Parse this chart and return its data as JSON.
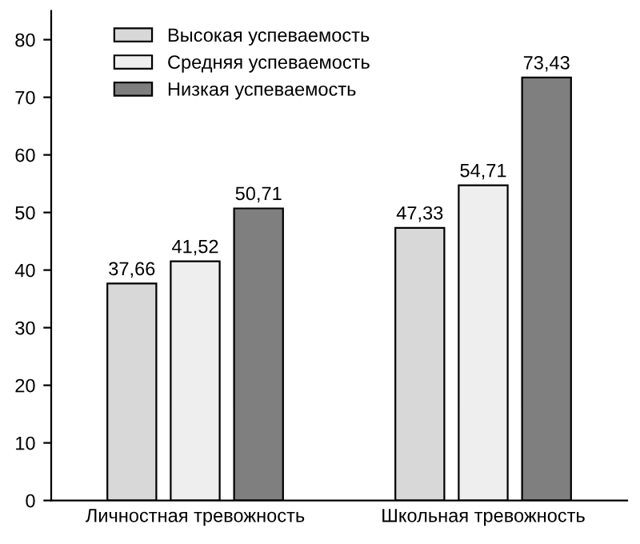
{
  "chart_data": {
    "type": "bar",
    "categories": [
      "Личностная тревожность",
      "Школьная тревожность"
    ],
    "series": [
      {
        "name": "Высокая успеваемость",
        "color": "#d8d8d8",
        "values": [
          37.66,
          47.33
        ],
        "value_labels": [
          "37,66",
          "47,33"
        ]
      },
      {
        "name": "Средняя успеваемость",
        "color": "#eeeeee",
        "values": [
          41.52,
          54.71
        ],
        "value_labels": [
          "41,52",
          "54,71"
        ]
      },
      {
        "name": "Низкая успеваемость",
        "color": "#7f7f7f",
        "values": [
          50.71,
          73.43
        ],
        "value_labels": [
          "50,71",
          "73,43"
        ]
      }
    ],
    "ylim": [
      0,
      85
    ],
    "yticks": [
      0,
      10,
      20,
      30,
      40,
      50,
      60,
      70,
      80
    ],
    "grid": false,
    "legend": "top left"
  }
}
